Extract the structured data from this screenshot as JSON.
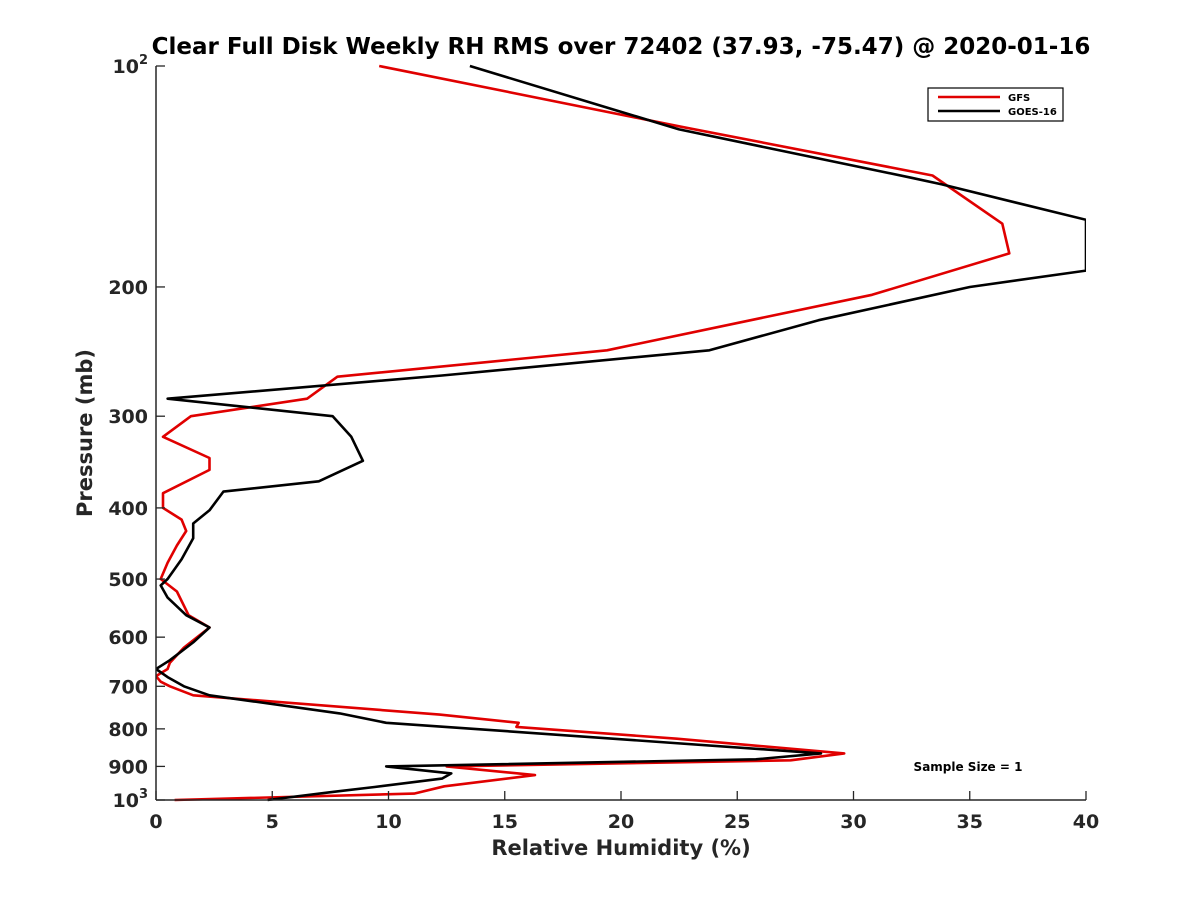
{
  "chart_data": {
    "type": "line",
    "title": "Clear Full Disk Weekly RH RMS over 72402 (37.93, -75.47) @ 2020-01-16",
    "xlabel": "Relative Humidity (%)",
    "ylabel": "Pressure (mb)",
    "xlim": [
      0,
      40
    ],
    "ylim": [
      100,
      1000
    ],
    "y_scale": "log",
    "y_reversed": true,
    "x_ticks": [
      0,
      5,
      10,
      15,
      20,
      25,
      30,
      35,
      40
    ],
    "x_tick_labels": [
      "0",
      "5",
      "10",
      "15",
      "20",
      "25",
      "30",
      "35",
      "40"
    ],
    "y_ticks": [
      {
        "value": 100,
        "label": "10",
        "sup": "2"
      },
      {
        "value": 200,
        "label": "200",
        "sup": ""
      },
      {
        "value": 300,
        "label": "300",
        "sup": ""
      },
      {
        "value": 400,
        "label": "400",
        "sup": ""
      },
      {
        "value": 500,
        "label": "500",
        "sup": ""
      },
      {
        "value": 600,
        "label": "600",
        "sup": ""
      },
      {
        "value": 700,
        "label": "700",
        "sup": ""
      },
      {
        "value": 800,
        "label": "800",
        "sup": ""
      },
      {
        "value": 900,
        "label": "900",
        "sup": ""
      },
      {
        "value": 1000,
        "label": "10",
        "sup": "3"
      }
    ],
    "grid": false,
    "legend_position": "top-right",
    "annotation": "Sample Size = 1",
    "series": [
      {
        "name": "GFS",
        "color": "#e00000",
        "points": [
          [
            9.6,
            100
          ],
          [
            22.6,
            121
          ],
          [
            33.4,
            141
          ],
          [
            36.4,
            164
          ],
          [
            36.7,
            180
          ],
          [
            30.8,
            205
          ],
          [
            19.4,
            244
          ],
          [
            7.8,
            265
          ],
          [
            6.5,
            284
          ],
          [
            1.5,
            300
          ],
          [
            0.3,
            320
          ],
          [
            2.3,
            342
          ],
          [
            2.3,
            355
          ],
          [
            0.3,
            382
          ],
          [
            0.3,
            400
          ],
          [
            1.1,
            415
          ],
          [
            1.3,
            430
          ],
          [
            0.9,
            450
          ],
          [
            0.5,
            475
          ],
          [
            0.2,
            500
          ],
          [
            0.9,
            520
          ],
          [
            1.4,
            560
          ],
          [
            2.3,
            582
          ],
          [
            1.2,
            620
          ],
          [
            0.6,
            650
          ],
          [
            0.5,
            663
          ],
          [
            0.0,
            678
          ],
          [
            0.2,
            690
          ],
          [
            0.6,
            700
          ],
          [
            1.6,
            720
          ],
          [
            12.2,
            765
          ],
          [
            15.6,
            785
          ],
          [
            15.5,
            795
          ],
          [
            22.4,
            825
          ],
          [
            29.6,
            864
          ],
          [
            27.3,
            883
          ],
          [
            12.5,
            900
          ],
          [
            16.3,
            925
          ],
          [
            12.4,
            958
          ],
          [
            11.1,
            980
          ],
          [
            0.8,
            1000
          ]
        ]
      },
      {
        "name": "GOES-16",
        "color": "#000000",
        "points": [
          [
            13.5,
            100
          ],
          [
            22.5,
            122
          ],
          [
            32.5,
            142
          ],
          [
            33.8,
            145
          ],
          [
            40.0,
            162
          ],
          [
            40.0,
            190
          ],
          [
            35.0,
            200
          ],
          [
            28.5,
            222
          ],
          [
            23.8,
            244
          ],
          [
            12.3,
            264
          ],
          [
            0.5,
            284
          ],
          [
            7.6,
            300
          ],
          [
            8.4,
            320
          ],
          [
            8.9,
            345
          ],
          [
            7.0,
            368
          ],
          [
            2.9,
            380
          ],
          [
            2.3,
            403
          ],
          [
            1.6,
            420
          ],
          [
            1.6,
            440
          ],
          [
            1.1,
            470
          ],
          [
            0.5,
            500
          ],
          [
            0.2,
            510
          ],
          [
            0.5,
            530
          ],
          [
            1.3,
            560
          ],
          [
            2.3,
            582
          ],
          [
            1.6,
            610
          ],
          [
            0.6,
            645
          ],
          [
            0.0,
            663
          ],
          [
            0.5,
            680
          ],
          [
            1.2,
            700
          ],
          [
            2.3,
            720
          ],
          [
            7.9,
            762
          ],
          [
            9.9,
            785
          ],
          [
            13.7,
            800
          ],
          [
            28.6,
            864
          ],
          [
            25.8,
            880
          ],
          [
            9.9,
            900
          ],
          [
            12.7,
            920
          ],
          [
            12.3,
            935
          ],
          [
            9.4,
            960
          ],
          [
            7.6,
            975
          ],
          [
            4.8,
            1000
          ]
        ]
      }
    ]
  }
}
